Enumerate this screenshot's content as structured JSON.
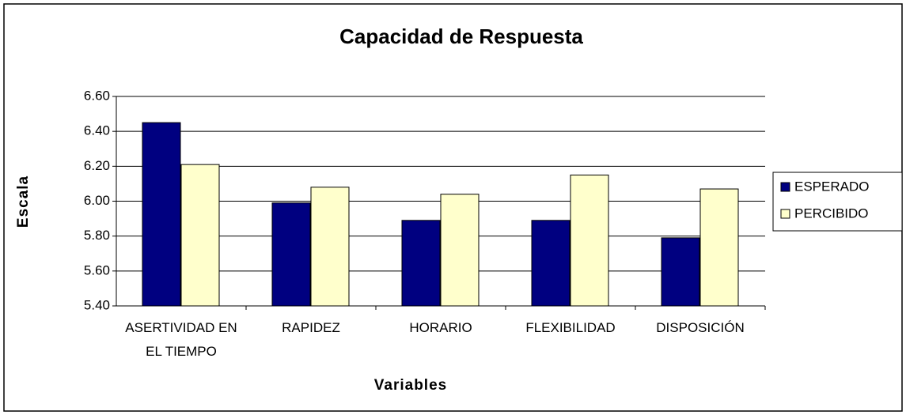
{
  "chart_data": {
    "type": "bar",
    "title": "Capacidad de Respuesta",
    "x_label": "Variables",
    "y_label": "Escala",
    "categories": [
      "ASERTIVIDAD EN EL TIEMPO",
      "RAPIDEZ",
      "HORARIO",
      "FLEXIBILIDAD",
      "DISPOSICIÓN"
    ],
    "series": [
      {
        "name": "ESPERADO",
        "color": "#000080",
        "values": [
          6.45,
          5.99,
          5.89,
          5.89,
          5.79
        ]
      },
      {
        "name": "PERCIBIDO",
        "color": "#ffffcc",
        "values": [
          6.21,
          6.08,
          6.04,
          6.15,
          6.07
        ]
      }
    ],
    "ylim": [
      5.4,
      6.6
    ],
    "yticks": [
      {
        "value": 5.4,
        "label": "5.40"
      },
      {
        "value": 5.6,
        "label": "5.60"
      },
      {
        "value": 5.8,
        "label": "5.80"
      },
      {
        "value": 6.0,
        "label": "6.00"
      },
      {
        "value": 6.2,
        "label": "6.20"
      },
      {
        "value": 6.4,
        "label": "6.40"
      },
      {
        "value": 6.6,
        "label": "6.60"
      }
    ],
    "grid": true,
    "legend": "right"
  }
}
